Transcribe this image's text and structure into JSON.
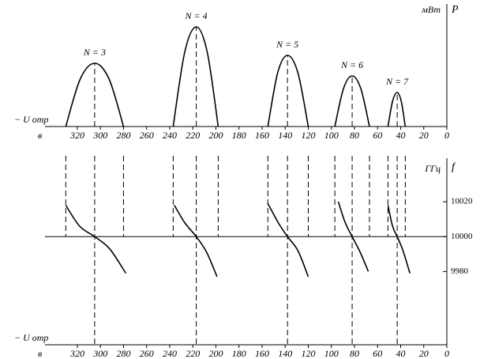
{
  "chart_data": [
    {
      "type": "line",
      "x_label": "− U отр",
      "x_unit": "в",
      "y_label": "P",
      "y_unit": "мВт",
      "xlim": [
        348,
        0
      ],
      "xticks": [
        320,
        300,
        280,
        260,
        240,
        220,
        200,
        180,
        160,
        140,
        120,
        100,
        80,
        60,
        40,
        20,
        0
      ],
      "ylim": [
        0,
        155
      ],
      "color": "#000000",
      "series": [
        {
          "name": "N = 3",
          "x": [
            330,
            317.5,
            305,
            292.5,
            280
          ],
          "values": [
            0,
            60,
            80,
            60,
            0
          ]
        },
        {
          "name": "N = 4",
          "x": [
            237,
            227,
            217,
            207.5,
            198
          ],
          "values": [
            0,
            94,
            126,
            94,
            0
          ]
        },
        {
          "name": "N = 5",
          "x": [
            155,
            146.5,
            138,
            129,
            120
          ],
          "values": [
            0,
            68,
            90,
            68,
            0
          ]
        },
        {
          "name": "N = 6",
          "x": [
            97,
            89.5,
            82,
            74.5,
            67
          ],
          "values": [
            0,
            48,
            64,
            48,
            0
          ]
        },
        {
          "name": "N = 7",
          "x": [
            51,
            47,
            43,
            39.5,
            36
          ],
          "values": [
            0,
            32,
            43,
            32,
            0
          ]
        }
      ]
    },
    {
      "type": "line",
      "x_label": "− U отр",
      "x_unit": "в",
      "y_label": "f",
      "y_unit": "ГГц",
      "xlim": [
        348,
        0
      ],
      "xticks": [
        320,
        300,
        280,
        260,
        240,
        220,
        200,
        180,
        160,
        140,
        120,
        100,
        80,
        60,
        40,
        20,
        0
      ],
      "ylim": [
        9938,
        10045
      ],
      "yticks": [
        9980,
        10000,
        10020
      ],
      "reference_line": 10000,
      "color": "#000000",
      "series": [
        {
          "x": [
            330,
            318,
            305,
            292,
            278
          ],
          "values": [
            10018,
            10006,
            10000,
            9993,
            9979
          ]
        },
        {
          "x": [
            236,
            227,
            217,
            208,
            199
          ],
          "values": [
            10018,
            10008,
            10000,
            9991,
            9977
          ]
        },
        {
          "x": [
            155,
            146,
            138,
            129,
            120
          ],
          "values": [
            10019,
            10008,
            10000,
            9992,
            9977
          ]
        },
        {
          "x": [
            94,
            88,
            82,
            75,
            68
          ],
          "values": [
            10020,
            10008,
            10000,
            9991,
            9980
          ]
        },
        {
          "x": [
            51,
            47,
            43,
            38,
            32
          ],
          "values": [
            10018,
            10006,
            10000,
            9992,
            9979
          ]
        }
      ]
    }
  ]
}
